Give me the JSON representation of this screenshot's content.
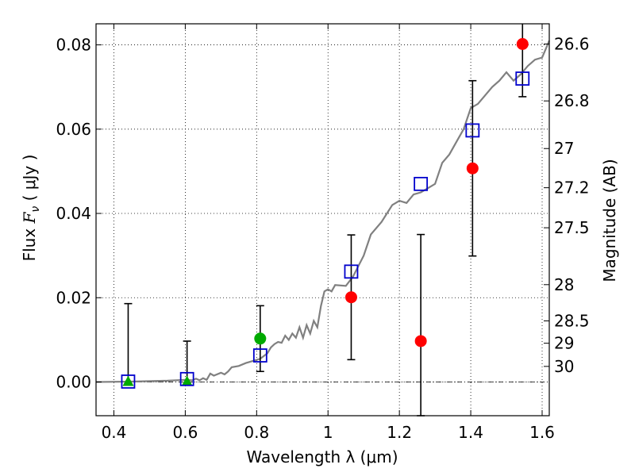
{
  "chart_data": {
    "type": "scatter",
    "xlabel": "Wavelength  λ (μm)",
    "ylabel_parts": {
      "prefix": "Flux  ",
      "symbol": "F",
      "subscript": "ν",
      "unit": " ( μJy )"
    },
    "ylabel_right": "Magnitude (AB)",
    "xlim": [
      0.35,
      1.62
    ],
    "ylim": [
      -0.008,
      0.085
    ],
    "grid": true,
    "x_ticks": [
      {
        "value": 0.4,
        "label": "0.4"
      },
      {
        "value": 0.6,
        "label": "0.6"
      },
      {
        "value": 0.8,
        "label": "0.8"
      },
      {
        "value": 1.0,
        "label": "1"
      },
      {
        "value": 1.2,
        "label": "1.2"
      },
      {
        "value": 1.4,
        "label": "1.4"
      },
      {
        "value": 1.6,
        "label": "1.6"
      }
    ],
    "y_ticks": [
      {
        "value": 0.0,
        "label": "0.00"
      },
      {
        "value": 0.02,
        "label": "0.02"
      },
      {
        "value": 0.04,
        "label": "0.04"
      },
      {
        "value": 0.06,
        "label": "0.06"
      },
      {
        "value": 0.08,
        "label": "0.08"
      }
    ],
    "mag_ticks": [
      {
        "value": 0.0802,
        "label": "26.6"
      },
      {
        "value": 0.0667,
        "label": "26.8"
      },
      {
        "value": 0.0554,
        "label": "27"
      },
      {
        "value": 0.0461,
        "label": "27.2"
      },
      {
        "value": 0.0366,
        "label": "27.5"
      },
      {
        "value": 0.0231,
        "label": "28"
      },
      {
        "value": 0.0145,
        "label": "28.5"
      },
      {
        "value": 0.0092,
        "label": "29"
      },
      {
        "value": 0.0037,
        "label": "30"
      }
    ],
    "colors": {
      "model": "#808080",
      "model_points": "#0000cc",
      "red_points": "#ff0000",
      "green_points": "#00aa00",
      "errorbars": "#000000",
      "grid": "#000000",
      "zero_line": "#000000"
    },
    "model_spectrum": [
      [
        0.35,
        0.0
      ],
      [
        0.45,
        0.0001
      ],
      [
        0.55,
        0.0003
      ],
      [
        0.6,
        0.0005
      ],
      [
        0.62,
        0.0004
      ],
      [
        0.63,
        0.0008
      ],
      [
        0.64,
        0.0004
      ],
      [
        0.65,
        0.0009
      ],
      [
        0.66,
        0.0005
      ],
      [
        0.67,
        0.002
      ],
      [
        0.68,
        0.0015
      ],
      [
        0.7,
        0.0022
      ],
      [
        0.71,
        0.0018
      ],
      [
        0.72,
        0.0025
      ],
      [
        0.73,
        0.0035
      ],
      [
        0.75,
        0.0038
      ],
      [
        0.77,
        0.0045
      ],
      [
        0.79,
        0.005
      ],
      [
        0.81,
        0.0055
      ],
      [
        0.83,
        0.0068
      ],
      [
        0.84,
        0.0082
      ],
      [
        0.85,
        0.009
      ],
      [
        0.86,
        0.0095
      ],
      [
        0.87,
        0.0093
      ],
      [
        0.88,
        0.011
      ],
      [
        0.89,
        0.01
      ],
      [
        0.9,
        0.0115
      ],
      [
        0.91,
        0.0105
      ],
      [
        0.92,
        0.013
      ],
      [
        0.93,
        0.0105
      ],
      [
        0.94,
        0.0135
      ],
      [
        0.95,
        0.0115
      ],
      [
        0.96,
        0.0145
      ],
      [
        0.97,
        0.013
      ],
      [
        0.98,
        0.018
      ],
      [
        0.99,
        0.0215
      ],
      [
        1.0,
        0.022
      ],
      [
        1.01,
        0.0215
      ],
      [
        1.02,
        0.023
      ],
      [
        1.05,
        0.0228
      ],
      [
        1.07,
        0.025
      ],
      [
        1.1,
        0.03
      ],
      [
        1.12,
        0.035
      ],
      [
        1.15,
        0.038
      ],
      [
        1.18,
        0.042
      ],
      [
        1.2,
        0.043
      ],
      [
        1.22,
        0.0425
      ],
      [
        1.24,
        0.0445
      ],
      [
        1.26,
        0.045
      ],
      [
        1.28,
        0.046
      ],
      [
        1.3,
        0.047
      ],
      [
        1.32,
        0.052
      ],
      [
        1.34,
        0.054
      ],
      [
        1.36,
        0.057
      ],
      [
        1.38,
        0.06
      ],
      [
        1.4,
        0.065
      ],
      [
        1.42,
        0.066
      ],
      [
        1.44,
        0.068
      ],
      [
        1.46,
        0.07
      ],
      [
        1.48,
        0.0715
      ],
      [
        1.5,
        0.0735
      ],
      [
        1.52,
        0.0715
      ],
      [
        1.54,
        0.073
      ],
      [
        1.56,
        0.075
      ],
      [
        1.58,
        0.0765
      ],
      [
        1.6,
        0.077
      ],
      [
        1.61,
        0.079
      ],
      [
        1.62,
        0.081
      ]
    ],
    "model_points": [
      {
        "x": 0.44,
        "y": 0.0001
      },
      {
        "x": 0.605,
        "y": 0.0007
      },
      {
        "x": 0.81,
        "y": 0.0063
      },
      {
        "x": 1.065,
        "y": 0.0262
      },
      {
        "x": 1.26,
        "y": 0.047
      },
      {
        "x": 1.405,
        "y": 0.0597
      },
      {
        "x": 1.545,
        "y": 0.072
      }
    ],
    "observed_red": [
      {
        "x": 1.065,
        "y": 0.0201,
        "err": 0.0148
      },
      {
        "x": 1.26,
        "y": 0.0097,
        "err": 0.0253
      },
      {
        "x": 1.405,
        "y": 0.0507,
        "err": 0.0208
      },
      {
        "x": 1.545,
        "y": 0.0802,
        "err": 0.0125
      }
    ],
    "observed_green_circle": [
      {
        "x": 0.81,
        "y": 0.0103,
        "err": 0.0078
      }
    ],
    "upper_limits_green": [
      {
        "x": 0.44,
        "y": 0.0,
        "top": 0.0186
      },
      {
        "x": 0.605,
        "y": 0.0,
        "top": 0.0097
      }
    ]
  }
}
